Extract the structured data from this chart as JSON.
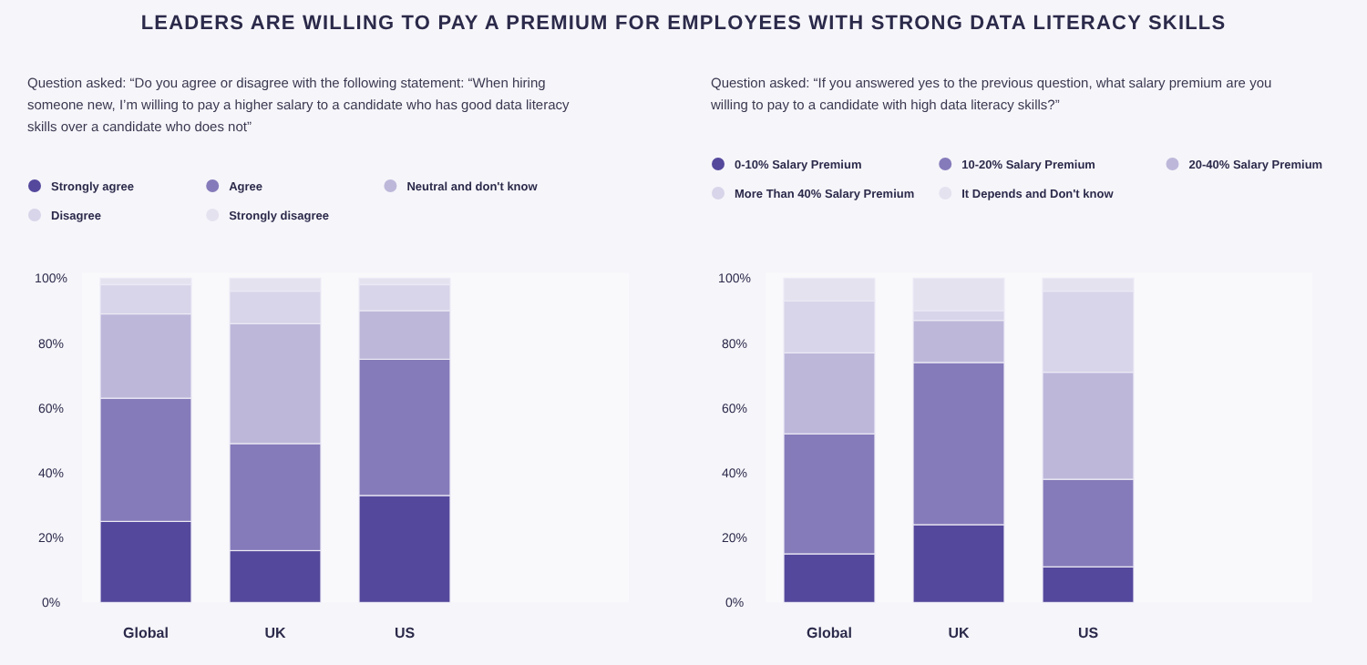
{
  "chart_data": [
    {
      "type": "bar",
      "stacked": true,
      "title": "LEADERS ARE WILLING TO PAY A PREMIUM FOR EMPLOYEES WITH STRONG DATA LITERACY SKILLS",
      "subtitle": "Question asked: “Do you agree or disagree with the following statement: “When hiring someone new, I’m willing to pay a higher salary to a candidate who has good data literacy skills over a candidate who does not”",
      "legend": "top",
      "categories": [
        "Global",
        "UK",
        "US"
      ],
      "ylim": [
        0,
        100
      ],
      "yticks": [
        {
          "value": 0,
          "label": "0%"
        },
        {
          "value": 20,
          "label": "20%"
        },
        {
          "value": 40,
          "label": "40%"
        },
        {
          "value": 60,
          "label": "60%"
        },
        {
          "value": 80,
          "label": "80%"
        },
        {
          "value": 100,
          "label": "100%"
        }
      ],
      "series": [
        {
          "name": "Strongly agree",
          "color": "#54489c",
          "values": [
            25,
            16,
            33
          ]
        },
        {
          "name": "Agree",
          "color": "#857bba",
          "values": [
            38,
            33,
            42
          ]
        },
        {
          "name": "Neutral and don't know",
          "color": "#bdb8da",
          "values": [
            26,
            37,
            15
          ]
        },
        {
          "name": "Disagree",
          "color": "#d8d4e9",
          "values": [
            9,
            10,
            8
          ]
        },
        {
          "name": "Strongly disagree",
          "color": "#e5e2f0",
          "values": [
            2,
            4,
            2
          ]
        }
      ]
    },
    {
      "type": "bar",
      "stacked": true,
      "subtitle": "Question asked: “If you answered yes to the previous question, what salary premium are you willing to pay to a candidate with high data literacy skills?”",
      "legend": "top",
      "categories": [
        "Global",
        "UK",
        "US"
      ],
      "ylim": [
        0,
        100
      ],
      "yticks": [
        {
          "value": 0,
          "label": "0%"
        },
        {
          "value": 20,
          "label": "20%"
        },
        {
          "value": 40,
          "label": "40%"
        },
        {
          "value": 60,
          "label": "60%"
        },
        {
          "value": 80,
          "label": "80%"
        },
        {
          "value": 100,
          "label": "100%"
        }
      ],
      "series": [
        {
          "name": "0-10% Salary Premium",
          "color": "#54489c",
          "values": [
            15,
            24,
            11
          ]
        },
        {
          "name": "10-20% Salary Premium",
          "color": "#857bba",
          "values": [
            37,
            50,
            27
          ]
        },
        {
          "name": "20-40% Salary Premium",
          "color": "#bdb8da",
          "values": [
            25,
            13,
            33
          ]
        },
        {
          "name": "More Than 40% Salary Premium",
          "color": "#d8d4e9",
          "values": [
            16,
            3,
            25
          ]
        },
        {
          "name": "It Depends and Don't know",
          "color": "#e5e2f0",
          "values": [
            7,
            10,
            4
          ]
        }
      ]
    }
  ]
}
